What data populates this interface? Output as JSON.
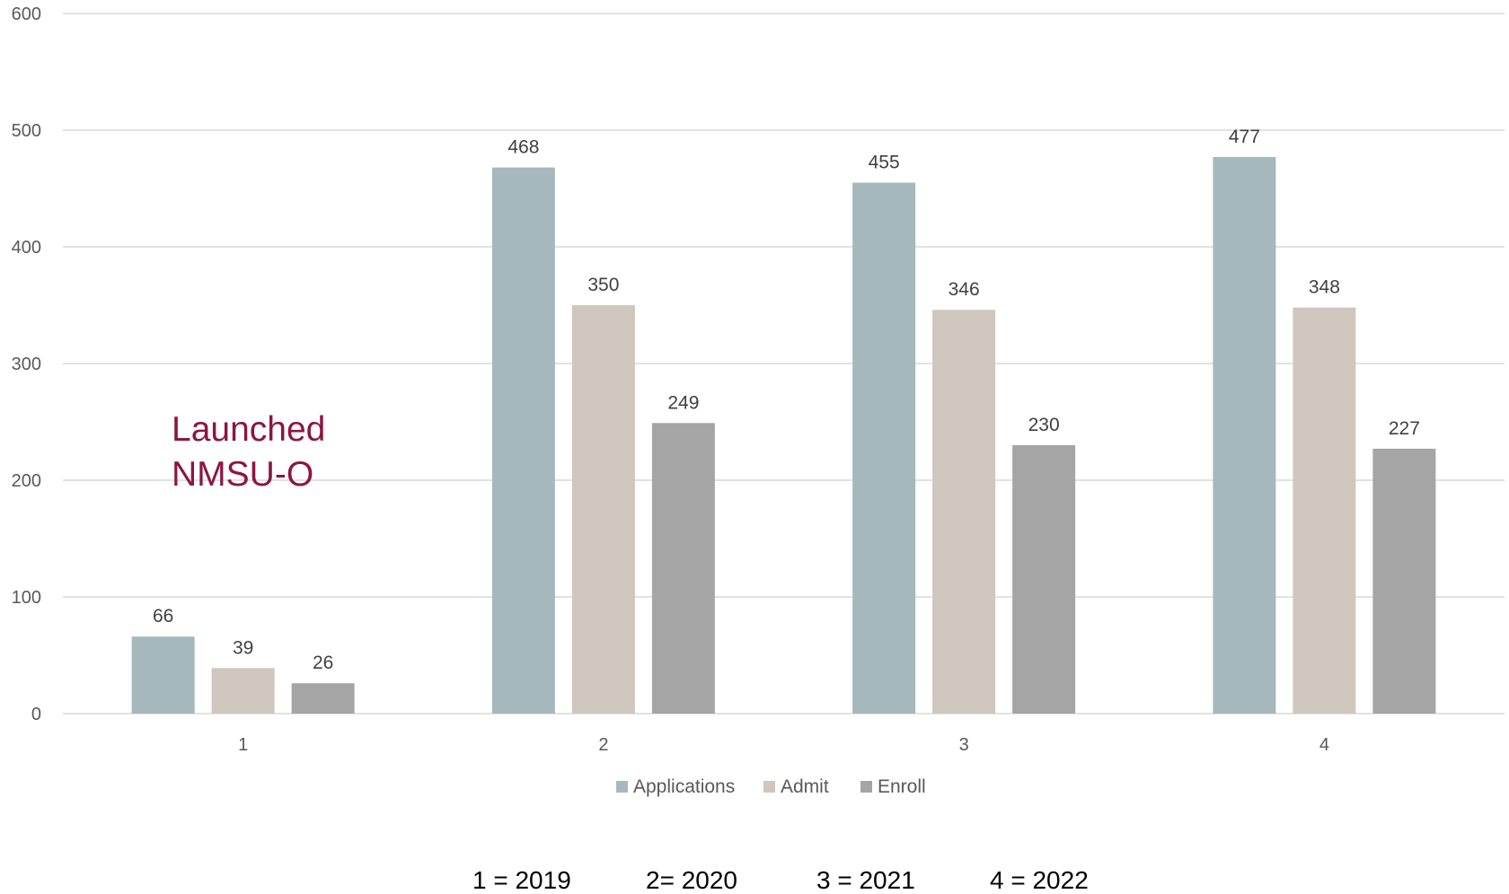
{
  "chart_data": {
    "type": "bar",
    "title": "",
    "xlabel": "",
    "ylabel": "",
    "categories": [
      "1",
      "2",
      "3",
      "4"
    ],
    "ylim": [
      0,
      600
    ],
    "yticks": [
      "0",
      "100",
      "200",
      "300",
      "400",
      "500",
      "600"
    ],
    "grid": true,
    "legend_position": "bottom",
    "series": [
      {
        "name": "Applications",
        "color": "#a6b8bc",
        "values": [
          66,
          468,
          455,
          477
        ]
      },
      {
        "name": "Admit",
        "color": "#cfc6bd",
        "values": [
          39,
          350,
          346,
          348
        ]
      },
      {
        "name": "Enroll",
        "color": "#a5a5a5",
        "values": [
          26,
          249,
          230,
          227
        ]
      }
    ],
    "annotation": {
      "lines": [
        "Launched",
        "NMSU-O"
      ],
      "color": "#8c1541"
    },
    "footnote": [
      "1 = 2019",
      "2= 2020",
      "3 = 2021",
      "4 = 2022"
    ]
  }
}
